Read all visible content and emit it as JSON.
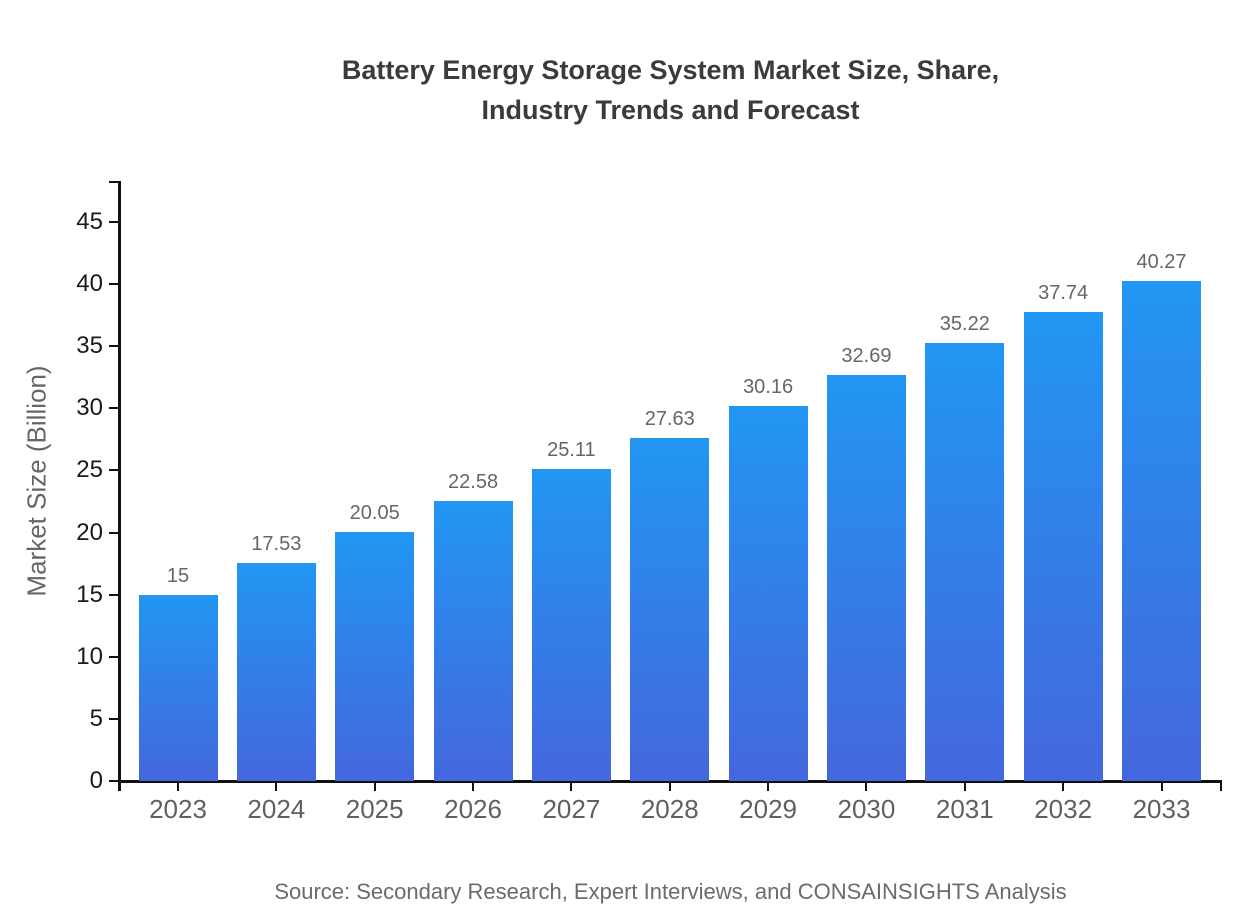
{
  "page": {
    "title_line1": "Battery Energy Storage System Market Size, Share,",
    "title_line2": "Industry Trends and Forecast",
    "source_note": "Source: Secondary Research, Expert Interviews, and CONSAINSIGHTS Analysis"
  },
  "chart_data": {
    "type": "bar",
    "title": "Battery Energy Storage System Market Size, Share, Industry Trends and Forecast",
    "categories": [
      "2023",
      "2024",
      "2025",
      "2026",
      "2027",
      "2028",
      "2029",
      "2030",
      "2031",
      "2032",
      "2033"
    ],
    "values": [
      15,
      17.53,
      20.05,
      22.58,
      25.11,
      27.63,
      30.16,
      32.69,
      35.22,
      37.74,
      40.27
    ],
    "value_labels": [
      "15",
      "17.53",
      "20.05",
      "22.58",
      "25.11",
      "27.63",
      "30.16",
      "32.69",
      "35.22",
      "37.74",
      "40.27"
    ],
    "xlabel": "",
    "ylabel": "Market Size (Billion)",
    "ylim": [
      0,
      48
    ],
    "yticks": [
      0,
      5,
      10,
      15,
      20,
      25,
      30,
      35,
      40,
      45
    ],
    "grid": false,
    "legend": false,
    "background_color": "#ffffff",
    "bar_color_top": "#2196f3",
    "bar_color_bottom": "#4467dd",
    "axis_color": "#111111",
    "value_label_color": "#666666",
    "x_tick_label_color": "#606060",
    "y_tick_label_color": "#1a1a1a"
  }
}
